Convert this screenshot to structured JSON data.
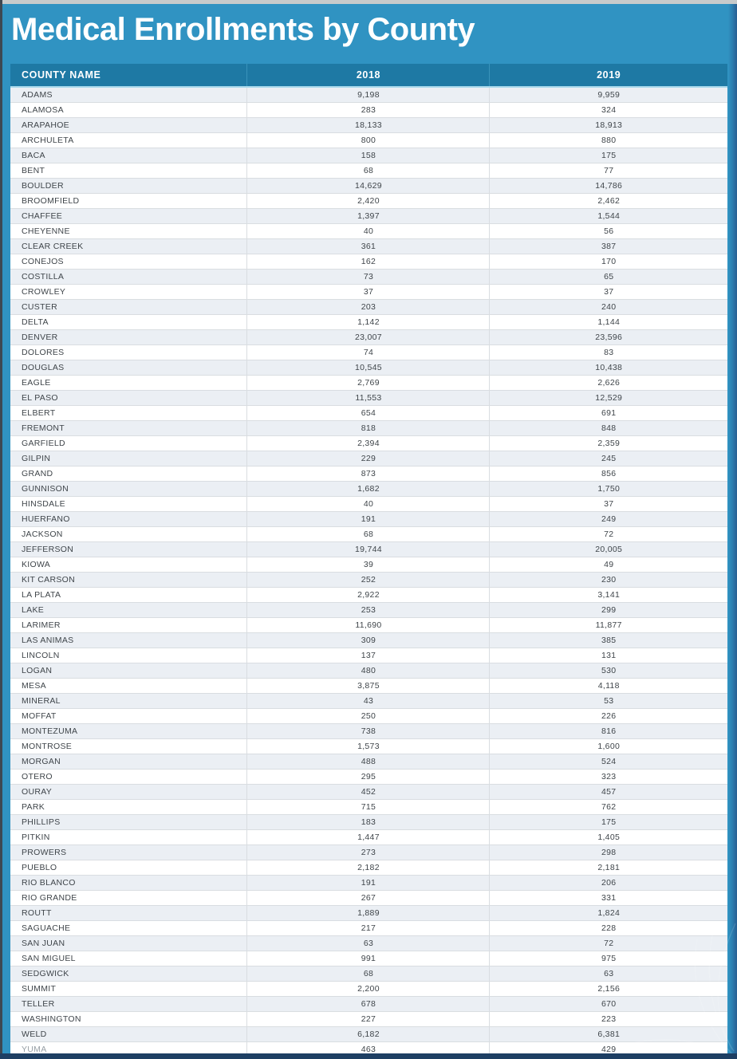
{
  "page": {
    "title": "Medical Enrollments by County"
  },
  "table": {
    "columns": [
      "COUNTY NAME",
      "2018",
      "2019"
    ]
  },
  "colors": {
    "page_background": "#3093c2",
    "header_background": "#1e79a4",
    "header_underline": "#a8d9ec",
    "row_alternate": "#ebeff4",
    "row_white": "#ffffff",
    "row_border": "#d9dde1",
    "body_text": "#3f454a",
    "title_text": "#ffffff",
    "top_strip": "#c7cbcb",
    "left_strip": "#3d4852",
    "bottom_strip": "#1e3f63",
    "right_strip": "#275e92"
  },
  "chart_data": {
    "type": "table",
    "title": "Medical Enrollments by County",
    "columns": [
      "COUNTY NAME",
      "2018",
      "2019"
    ],
    "rows": [
      [
        "ADAMS",
        9198,
        9959
      ],
      [
        "ALAMOSA",
        283,
        324
      ],
      [
        "ARAPAHOE",
        18133,
        18913
      ],
      [
        "ARCHULETA",
        800,
        880
      ],
      [
        "BACA",
        158,
        175
      ],
      [
        "BENT",
        68,
        77
      ],
      [
        "BOULDER",
        14629,
        14786
      ],
      [
        "BROOMFIELD",
        2420,
        2462
      ],
      [
        "CHAFFEE",
        1397,
        1544
      ],
      [
        "CHEYENNE",
        40,
        56
      ],
      [
        "CLEAR CREEK",
        361,
        387
      ],
      [
        "CONEJOS",
        162,
        170
      ],
      [
        "COSTILLA",
        73,
        65
      ],
      [
        "CROWLEY",
        37,
        37
      ],
      [
        "CUSTER",
        203,
        240
      ],
      [
        "DELTA",
        1142,
        1144
      ],
      [
        "DENVER",
        23007,
        23596
      ],
      [
        "DOLORES",
        74,
        83
      ],
      [
        "DOUGLAS",
        10545,
        10438
      ],
      [
        "EAGLE",
        2769,
        2626
      ],
      [
        "EL PASO",
        11553,
        12529
      ],
      [
        "ELBERT",
        654,
        691
      ],
      [
        "FREMONT",
        818,
        848
      ],
      [
        "GARFIELD",
        2394,
        2359
      ],
      [
        "GILPIN",
        229,
        245
      ],
      [
        "GRAND",
        873,
        856
      ],
      [
        "GUNNISON",
        1682,
        1750
      ],
      [
        "HINSDALE",
        40,
        37
      ],
      [
        "HUERFANO",
        191,
        249
      ],
      [
        "JACKSON",
        68,
        72
      ],
      [
        "JEFFERSON",
        19744,
        20005
      ],
      [
        "KIOWA",
        39,
        49
      ],
      [
        "KIT CARSON",
        252,
        230
      ],
      [
        "LA PLATA",
        2922,
        3141
      ],
      [
        "LAKE",
        253,
        299
      ],
      [
        "LARIMER",
        11690,
        11877
      ],
      [
        "LAS ANIMAS",
        309,
        385
      ],
      [
        "LINCOLN",
        137,
        131
      ],
      [
        "LOGAN",
        480,
        530
      ],
      [
        "MESA",
        3875,
        4118
      ],
      [
        "MINERAL",
        43,
        53
      ],
      [
        "MOFFAT",
        250,
        226
      ],
      [
        "MONTEZUMA",
        738,
        816
      ],
      [
        "MONTROSE",
        1573,
        1600
      ],
      [
        "MORGAN",
        488,
        524
      ],
      [
        "OTERO",
        295,
        323
      ],
      [
        "OURAY",
        452,
        457
      ],
      [
        "PARK",
        715,
        762
      ],
      [
        "PHILLIPS",
        183,
        175
      ],
      [
        "PITKIN",
        1447,
        1405
      ],
      [
        "PROWERS",
        273,
        298
      ],
      [
        "PUEBLO",
        2182,
        2181
      ],
      [
        "RIO BLANCO",
        191,
        206
      ],
      [
        "RIO GRANDE",
        267,
        331
      ],
      [
        "ROUTT",
        1889,
        1824
      ],
      [
        "SAGUACHE",
        217,
        228
      ],
      [
        "SAN JUAN",
        63,
        72
      ],
      [
        "SAN MIGUEL",
        991,
        975
      ],
      [
        "SEDGWICK",
        68,
        63
      ],
      [
        "SUMMIT",
        2200,
        2156
      ],
      [
        "TELLER",
        678,
        670
      ],
      [
        "WASHINGTON",
        227,
        223
      ],
      [
        "WELD",
        6182,
        6381
      ],
      [
        "YUMA",
        463,
        429
      ]
    ]
  }
}
